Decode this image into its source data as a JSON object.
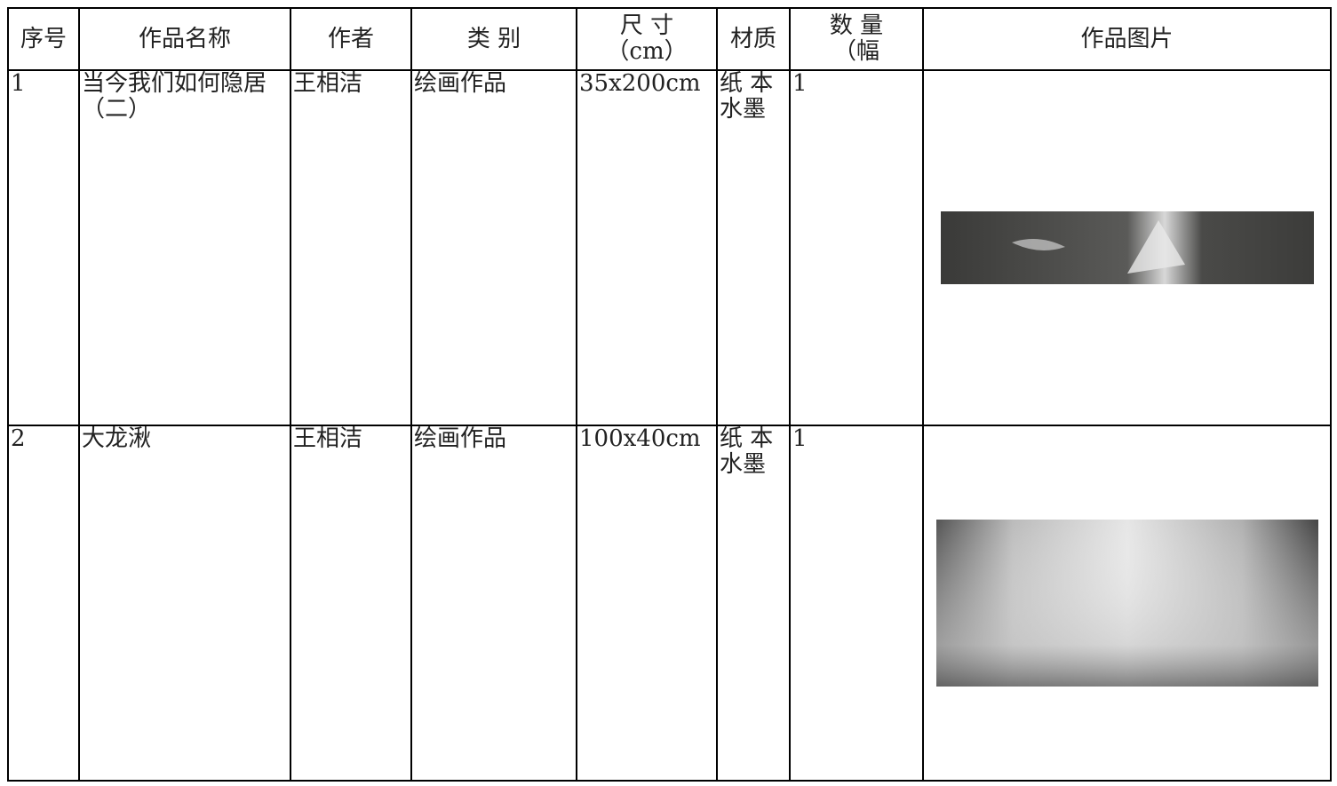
{
  "table": {
    "header": [
      [
        "序号"
      ],
      [
        "作品名称"
      ],
      [
        "作者"
      ],
      [
        "类 别"
      ],
      [
        "尺 寸",
        "（cm）"
      ],
      [
        "材质"
      ],
      [
        "数 量",
        "（幅"
      ],
      [
        "作品图片"
      ]
    ],
    "rows": [
      [
        "1",
        "当今我们如何隐居（二）",
        "王相洁",
        "绘画作品",
        "35x200cm",
        "纸 本水墨",
        "1"
      ],
      [
        "2",
        "大龙湫",
        "王相洁",
        "绘画作品",
        "100x40cm",
        "纸 本水墨",
        "1"
      ]
    ]
  }
}
